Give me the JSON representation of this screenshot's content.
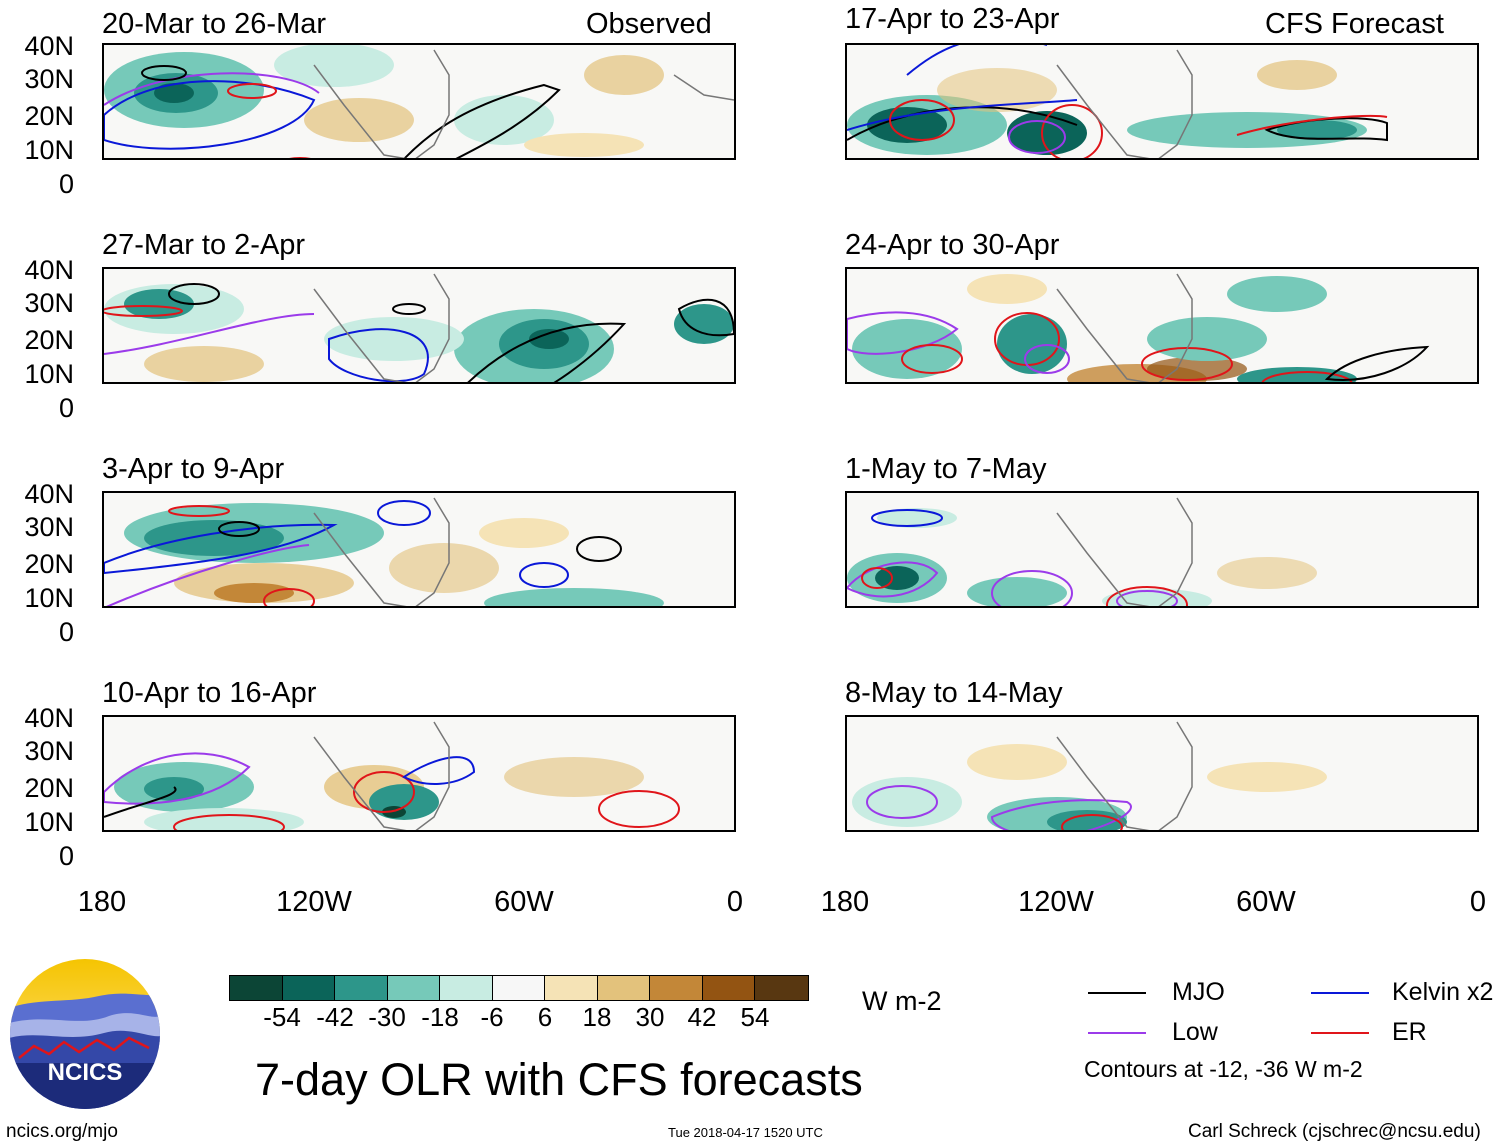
{
  "y_axis_labels": [
    "40N",
    "30N",
    "20N",
    "10N",
    "0"
  ],
  "x_axis_labels": [
    "180",
    "120W",
    "60W",
    "0"
  ],
  "column_labels": {
    "left": "Observed",
    "right": "CFS Forecast"
  },
  "panels_left": [
    {
      "title": "20-Mar to 26-Mar"
    },
    {
      "title": "27-Mar to 2-Apr"
    },
    {
      "title": "3-Apr to 9-Apr"
    },
    {
      "title": "10-Apr to 16-Apr"
    }
  ],
  "panels_right": [
    {
      "title": "17-Apr to 23-Apr"
    },
    {
      "title": "24-Apr to 30-Apr"
    },
    {
      "title": "1-May to 7-May"
    },
    {
      "title": "8-May to 14-May"
    }
  ],
  "colorbar": {
    "colors": [
      "#0c4536",
      "#0b6459",
      "#2d968a",
      "#76c9b9",
      "#c8ece2",
      "#f7f7f7",
      "#f5e3b6",
      "#e3c27c",
      "#c38738",
      "#935412",
      "#583711"
    ],
    "ticks": [
      "-54",
      "-42",
      "-30",
      "-18",
      "-6",
      "6",
      "18",
      "30",
      "42",
      "54"
    ],
    "units": "W m-2"
  },
  "title": "7-day OLR with CFS forecasts",
  "legend": {
    "items": [
      {
        "label": "MJO",
        "color": "#000000"
      },
      {
        "label": "Kelvin x2",
        "color": "#0a18d8"
      },
      {
        "label": "Low",
        "color": "#9b3bea"
      },
      {
        "label": "ER",
        "color": "#e0151a"
      }
    ],
    "note": "Contours at -12, -36 W m-2"
  },
  "logo_text": "NCICS",
  "footer": {
    "left": "ncics.org/mjo",
    "center": "Tue 2018-04-17 1520 UTC",
    "right": "Carl Schreck (cjschrec@ncsu.edu)"
  }
}
